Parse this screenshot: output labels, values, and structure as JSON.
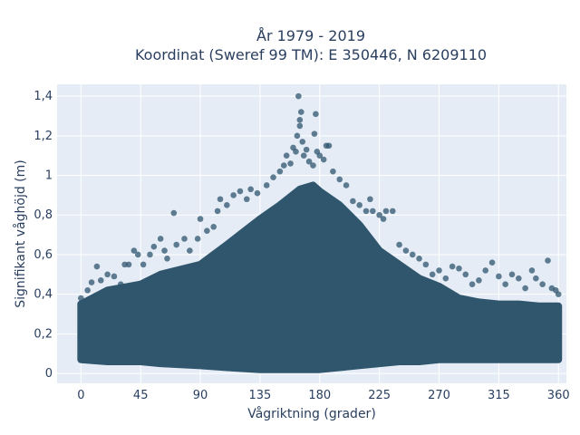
{
  "chart_data": {
    "type": "scatter",
    "title_line1": "År 1979 - 2019",
    "title_line2": "Koordinat (Sweref 99 TM): E 350446, N 6209110",
    "xlabel": "Vågriktning (grader)",
    "ylabel": "Signifikant våghöjd (m)",
    "xlim": [
      -18,
      366
    ],
    "ylim": [
      -0.05,
      1.46
    ],
    "x_ticks": [
      0,
      45,
      90,
      135,
      180,
      225,
      270,
      315,
      360
    ],
    "x_tick_labels": [
      "0",
      "45",
      "90",
      "135",
      "180",
      "225",
      "270",
      "315",
      "360"
    ],
    "y_ticks": [
      0,
      0.2,
      0.4,
      0.6,
      0.8,
      1,
      1.2,
      1.4
    ],
    "y_tick_labels": [
      "0",
      "0,2",
      "0,4",
      "0,6",
      "0,8",
      "1",
      "1,2",
      "1,4"
    ],
    "grid": true,
    "colors": {
      "marker": "#2f566d",
      "background": "#e5ecf6",
      "grid": "#ffffff"
    },
    "envelope": {
      "x": [
        0,
        20,
        45,
        60,
        90,
        110,
        135,
        150,
        165,
        175,
        180,
        195,
        210,
        225,
        240,
        255,
        270,
        285,
        300,
        315,
        330,
        345,
        360
      ],
      "y_max": [
        0.35,
        0.42,
        0.45,
        0.5,
        0.55,
        0.65,
        0.78,
        0.85,
        0.93,
        0.95,
        0.92,
        0.85,
        0.75,
        0.62,
        0.55,
        0.48,
        0.44,
        0.38,
        0.36,
        0.35,
        0.35,
        0.34,
        0.34
      ],
      "y_min": [
        0.07,
        0.06,
        0.06,
        0.05,
        0.04,
        0.03,
        0.02,
        0.02,
        0.02,
        0.02,
        0.02,
        0.03,
        0.04,
        0.05,
        0.06,
        0.06,
        0.07,
        0.07,
        0.07,
        0.07,
        0.07,
        0.07,
        0.07
      ]
    },
    "points": [
      {
        "x": 0,
        "y": 0.38
      },
      {
        "x": 5,
        "y": 0.42
      },
      {
        "x": 8,
        "y": 0.46
      },
      {
        "x": 12,
        "y": 0.54
      },
      {
        "x": 15,
        "y": 0.47
      },
      {
        "x": 20,
        "y": 0.5
      },
      {
        "x": 25,
        "y": 0.49
      },
      {
        "x": 30,
        "y": 0.45
      },
      {
        "x": 33,
        "y": 0.55
      },
      {
        "x": 36,
        "y": 0.55
      },
      {
        "x": 40,
        "y": 0.62
      },
      {
        "x": 43,
        "y": 0.6
      },
      {
        "x": 47,
        "y": 0.55
      },
      {
        "x": 52,
        "y": 0.6
      },
      {
        "x": 55,
        "y": 0.64
      },
      {
        "x": 60,
        "y": 0.68
      },
      {
        "x": 63,
        "y": 0.62
      },
      {
        "x": 65,
        "y": 0.58
      },
      {
        "x": 70,
        "y": 0.81
      },
      {
        "x": 72,
        "y": 0.65
      },
      {
        "x": 78,
        "y": 0.68
      },
      {
        "x": 82,
        "y": 0.62
      },
      {
        "x": 88,
        "y": 0.68
      },
      {
        "x": 90,
        "y": 0.78
      },
      {
        "x": 95,
        "y": 0.72
      },
      {
        "x": 100,
        "y": 0.74
      },
      {
        "x": 103,
        "y": 0.82
      },
      {
        "x": 105,
        "y": 0.88
      },
      {
        "x": 110,
        "y": 0.85
      },
      {
        "x": 115,
        "y": 0.9
      },
      {
        "x": 120,
        "y": 0.92
      },
      {
        "x": 125,
        "y": 0.88
      },
      {
        "x": 128,
        "y": 0.93
      },
      {
        "x": 133,
        "y": 0.91
      },
      {
        "x": 140,
        "y": 0.95
      },
      {
        "x": 145,
        "y": 0.99
      },
      {
        "x": 150,
        "y": 1.02
      },
      {
        "x": 153,
        "y": 1.05
      },
      {
        "x": 155,
        "y": 1.1
      },
      {
        "x": 158,
        "y": 1.06
      },
      {
        "x": 160,
        "y": 1.14
      },
      {
        "x": 162,
        "y": 1.12
      },
      {
        "x": 163,
        "y": 1.2
      },
      {
        "x": 164,
        "y": 1.4
      },
      {
        "x": 165,
        "y": 1.28
      },
      {
        "x": 165,
        "y": 1.25
      },
      {
        "x": 166,
        "y": 1.32
      },
      {
        "x": 167,
        "y": 1.17
      },
      {
        "x": 168,
        "y": 1.1
      },
      {
        "x": 170,
        "y": 1.13
      },
      {
        "x": 172,
        "y": 1.07
      },
      {
        "x": 175,
        "y": 1.05
      },
      {
        "x": 176,
        "y": 1.21
      },
      {
        "x": 177,
        "y": 1.31
      },
      {
        "x": 178,
        "y": 1.12
      },
      {
        "x": 180,
        "y": 1.1
      },
      {
        "x": 183,
        "y": 1.08
      },
      {
        "x": 185,
        "y": 1.15
      },
      {
        "x": 187,
        "y": 1.15
      },
      {
        "x": 190,
        "y": 1.02
      },
      {
        "x": 195,
        "y": 0.98
      },
      {
        "x": 200,
        "y": 0.95
      },
      {
        "x": 205,
        "y": 0.87
      },
      {
        "x": 210,
        "y": 0.85
      },
      {
        "x": 215,
        "y": 0.82
      },
      {
        "x": 218,
        "y": 0.88
      },
      {
        "x": 220,
        "y": 0.82
      },
      {
        "x": 225,
        "y": 0.8
      },
      {
        "x": 228,
        "y": 0.78
      },
      {
        "x": 230,
        "y": 0.82
      },
      {
        "x": 235,
        "y": 0.82
      },
      {
        "x": 240,
        "y": 0.65
      },
      {
        "x": 245,
        "y": 0.62
      },
      {
        "x": 250,
        "y": 0.6
      },
      {
        "x": 255,
        "y": 0.58
      },
      {
        "x": 260,
        "y": 0.55
      },
      {
        "x": 265,
        "y": 0.5
      },
      {
        "x": 270,
        "y": 0.52
      },
      {
        "x": 275,
        "y": 0.48
      },
      {
        "x": 280,
        "y": 0.54
      },
      {
        "x": 285,
        "y": 0.53
      },
      {
        "x": 290,
        "y": 0.5
      },
      {
        "x": 295,
        "y": 0.45
      },
      {
        "x": 300,
        "y": 0.47
      },
      {
        "x": 305,
        "y": 0.52
      },
      {
        "x": 310,
        "y": 0.56
      },
      {
        "x": 315,
        "y": 0.49
      },
      {
        "x": 320,
        "y": 0.45
      },
      {
        "x": 325,
        "y": 0.5
      },
      {
        "x": 330,
        "y": 0.48
      },
      {
        "x": 335,
        "y": 0.43
      },
      {
        "x": 340,
        "y": 0.52
      },
      {
        "x": 343,
        "y": 0.48
      },
      {
        "x": 348,
        "y": 0.45
      },
      {
        "x": 352,
        "y": 0.57
      },
      {
        "x": 355,
        "y": 0.43
      },
      {
        "x": 358,
        "y": 0.42
      },
      {
        "x": 360,
        "y": 0.4
      }
    ]
  }
}
